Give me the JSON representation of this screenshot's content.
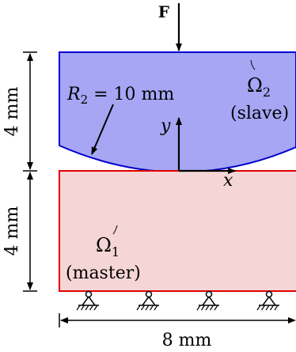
{
  "force": {
    "label": "F"
  },
  "dimensions": {
    "top_height": "4 mm",
    "bottom_height": "4 mm",
    "width": "8 mm"
  },
  "slave": {
    "radius_label_main": "R",
    "radius_label_sub": "2",
    "radius_label_rest": " = 10 mm",
    "domain_main": "Ω",
    "domain_sub": "2",
    "role": "(slave)",
    "fill": "#a6a6f5",
    "stroke": "#0000cc"
  },
  "master": {
    "domain_main": "Ω",
    "domain_sub": "1",
    "role": "(master)",
    "fill": "#f5d5d5",
    "stroke": "#e00000"
  },
  "axes": {
    "x": "x",
    "y": "y"
  },
  "supports": {
    "count": 4
  }
}
